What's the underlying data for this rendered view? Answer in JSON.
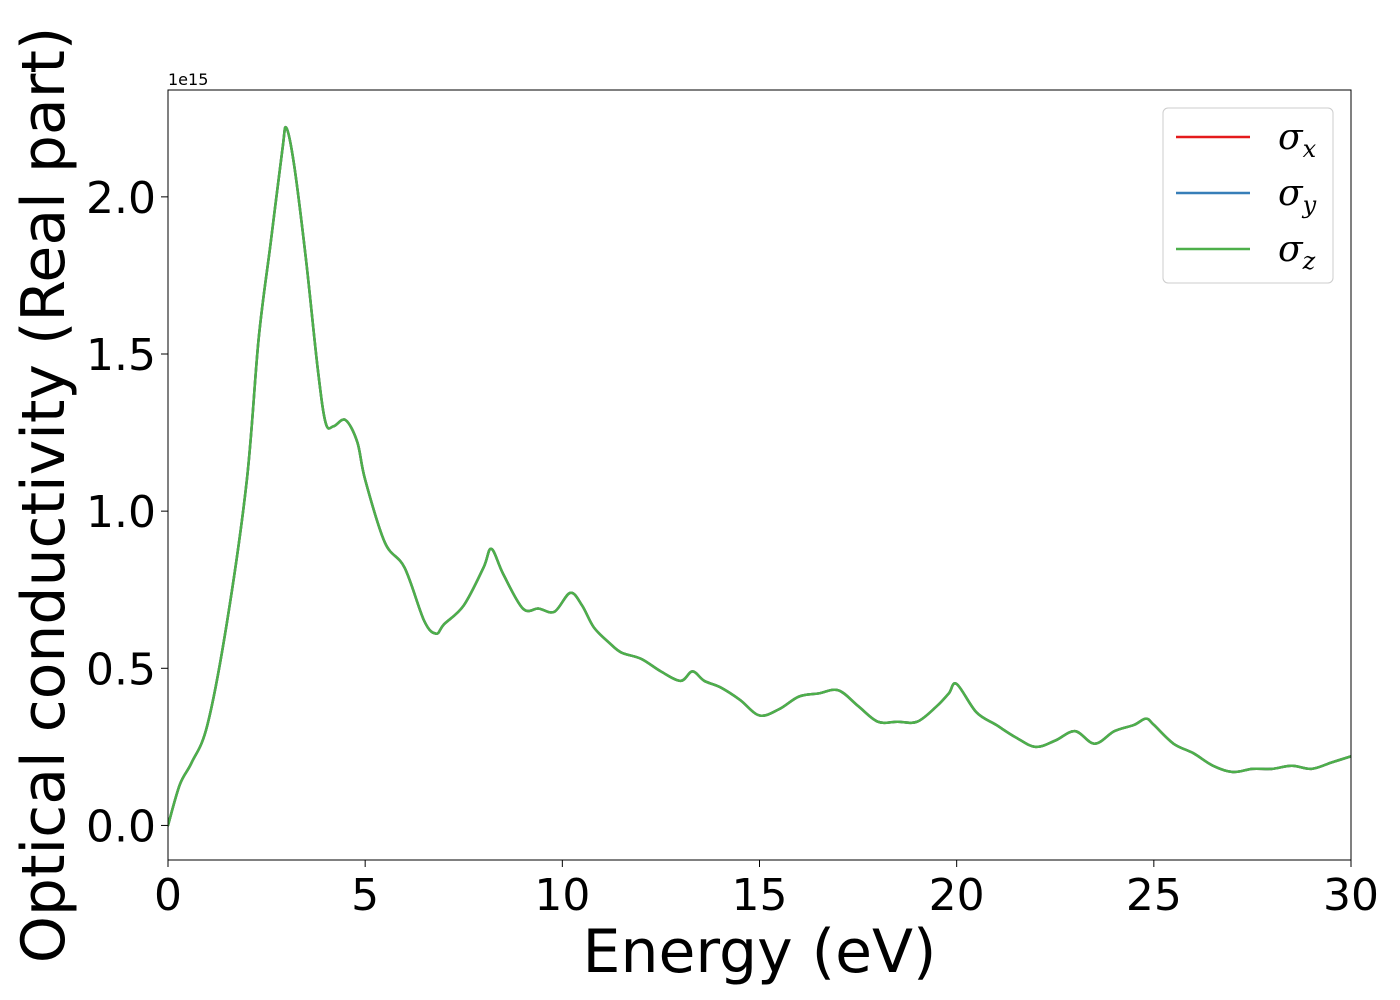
{
  "chart_data": {
    "type": "line",
    "title": "",
    "xlabel": "Energy (eV)",
    "ylabel": "Optical conductivity (Real part)",
    "y_offset_label": "1e15",
    "y_scale": 1000000000000000.0,
    "xlim": [
      0,
      30
    ],
    "ylim": [
      -0.11,
      2.34
    ],
    "xticks": [
      0,
      5,
      10,
      15,
      20,
      25,
      30
    ],
    "yticks": [
      0.0,
      0.5,
      1.0,
      1.5,
      2.0
    ],
    "xtick_labels": [
      "0",
      "5",
      "10",
      "15",
      "20",
      "25",
      "30"
    ],
    "ytick_labels": [
      "0.0",
      "0.5",
      "1.0",
      "1.5",
      "2.0"
    ],
    "grid": false,
    "legend_position": "top-right",
    "legend_symbol": "σ",
    "x": [
      0,
      0.3,
      0.6,
      1.0,
      1.5,
      2.0,
      2.3,
      2.6,
      2.9,
      3.0,
      3.2,
      3.5,
      3.8,
      4.0,
      4.2,
      4.5,
      4.8,
      5.0,
      5.5,
      6.0,
      6.5,
      6.8,
      7.0,
      7.5,
      8.0,
      8.2,
      8.5,
      9.0,
      9.4,
      9.8,
      10.2,
      10.5,
      10.8,
      11.2,
      11.5,
      12.0,
      12.5,
      13.0,
      13.3,
      13.6,
      14.0,
      14.5,
      15.0,
      15.5,
      16.0,
      16.5,
      17.0,
      17.5,
      18.0,
      18.5,
      19.0,
      19.5,
      19.8,
      20.0,
      20.5,
      21.0,
      21.5,
      22.0,
      22.5,
      23.0,
      23.5,
      24.0,
      24.5,
      24.8,
      25.0,
      25.5,
      26.0,
      26.5,
      27.0,
      27.5,
      28.0,
      28.5,
      29.0,
      29.5,
      30.0
    ],
    "series": [
      {
        "name": "x",
        "color": "#e41a1c",
        "y": [
          0.0,
          0.13,
          0.2,
          0.32,
          0.65,
          1.1,
          1.55,
          1.85,
          2.15,
          2.22,
          2.1,
          1.8,
          1.45,
          1.28,
          1.27,
          1.29,
          1.22,
          1.1,
          0.9,
          0.82,
          0.65,
          0.61,
          0.64,
          0.7,
          0.82,
          0.88,
          0.8,
          0.69,
          0.69,
          0.68,
          0.74,
          0.7,
          0.63,
          0.58,
          0.55,
          0.53,
          0.49,
          0.46,
          0.49,
          0.46,
          0.44,
          0.4,
          0.35,
          0.37,
          0.41,
          0.42,
          0.43,
          0.38,
          0.33,
          0.33,
          0.33,
          0.38,
          0.42,
          0.45,
          0.36,
          0.32,
          0.28,
          0.25,
          0.27,
          0.3,
          0.26,
          0.3,
          0.32,
          0.34,
          0.32,
          0.26,
          0.23,
          0.19,
          0.17,
          0.18,
          0.18,
          0.19,
          0.18,
          0.2,
          0.22
        ]
      },
      {
        "name": "y",
        "color": "#377eb8",
        "y": [
          0.0,
          0.13,
          0.2,
          0.32,
          0.65,
          1.1,
          1.55,
          1.85,
          2.15,
          2.22,
          2.1,
          1.8,
          1.45,
          1.28,
          1.27,
          1.29,
          1.22,
          1.1,
          0.9,
          0.82,
          0.65,
          0.61,
          0.64,
          0.7,
          0.82,
          0.88,
          0.8,
          0.69,
          0.69,
          0.68,
          0.74,
          0.7,
          0.63,
          0.58,
          0.55,
          0.53,
          0.49,
          0.46,
          0.49,
          0.46,
          0.44,
          0.4,
          0.35,
          0.37,
          0.41,
          0.42,
          0.43,
          0.38,
          0.33,
          0.33,
          0.33,
          0.38,
          0.42,
          0.45,
          0.36,
          0.32,
          0.28,
          0.25,
          0.27,
          0.3,
          0.26,
          0.3,
          0.32,
          0.34,
          0.32,
          0.26,
          0.23,
          0.19,
          0.17,
          0.18,
          0.18,
          0.19,
          0.18,
          0.2,
          0.22
        ]
      },
      {
        "name": "z",
        "color": "#4daf4a",
        "y": [
          0.0,
          0.13,
          0.2,
          0.32,
          0.65,
          1.1,
          1.55,
          1.85,
          2.15,
          2.22,
          2.1,
          1.8,
          1.45,
          1.28,
          1.27,
          1.29,
          1.22,
          1.1,
          0.9,
          0.82,
          0.65,
          0.61,
          0.64,
          0.7,
          0.82,
          0.88,
          0.8,
          0.69,
          0.69,
          0.68,
          0.74,
          0.7,
          0.63,
          0.58,
          0.55,
          0.53,
          0.49,
          0.46,
          0.49,
          0.46,
          0.44,
          0.4,
          0.35,
          0.37,
          0.41,
          0.42,
          0.43,
          0.38,
          0.33,
          0.33,
          0.33,
          0.38,
          0.42,
          0.45,
          0.36,
          0.32,
          0.28,
          0.25,
          0.27,
          0.3,
          0.26,
          0.3,
          0.32,
          0.34,
          0.32,
          0.26,
          0.23,
          0.19,
          0.17,
          0.18,
          0.18,
          0.19,
          0.18,
          0.2,
          0.22
        ]
      }
    ]
  }
}
